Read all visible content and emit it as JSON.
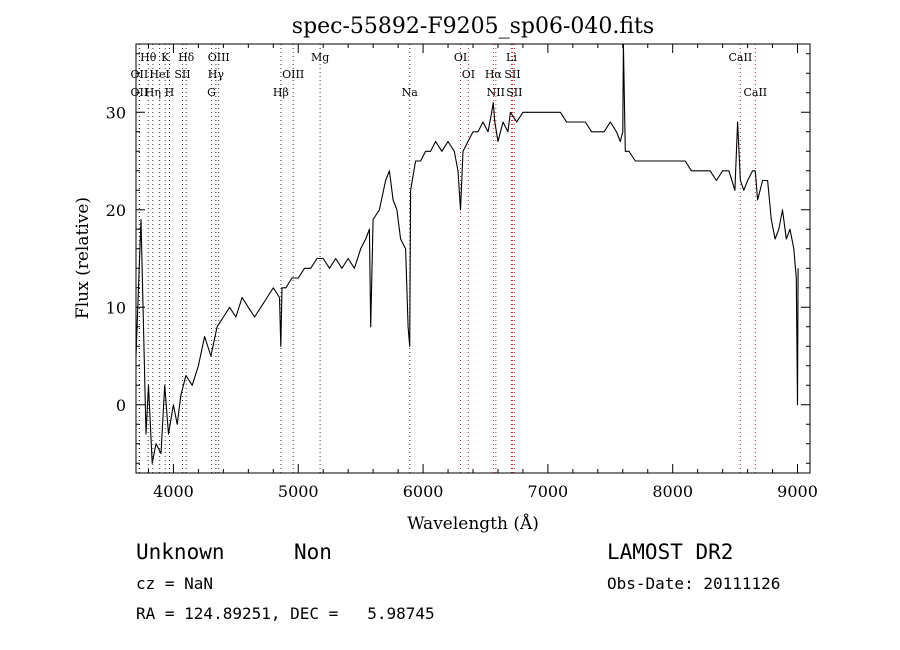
{
  "chart_data": {
    "type": "line",
    "title": "spec-55892-F9205_sp06-040.fits",
    "xlabel": "Wavelength (Å)",
    "ylabel": "Flux (relative)",
    "xlim": [
      3700,
      9100
    ],
    "ylim": [
      -7,
      37
    ],
    "x_ticks": [
      4000,
      5000,
      6000,
      7000,
      8000,
      9000
    ],
    "y_ticks": [
      0,
      10,
      20,
      30
    ],
    "grid": false,
    "series": [
      {
        "color": "#000000",
        "x": [
          3700,
          3740,
          3780,
          3800,
          3830,
          3860,
          3900,
          3930,
          3960,
          4000,
          4030,
          4060,
          4100,
          4150,
          4200,
          4250,
          4300,
          4350,
          4400,
          4450,
          4500,
          4550,
          4600,
          4650,
          4700,
          4750,
          4800,
          4850,
          4860,
          4870,
          4900,
          4950,
          5000,
          5050,
          5100,
          5150,
          5200,
          5250,
          5300,
          5350,
          5400,
          5450,
          5500,
          5540,
          5570,
          5580,
          5600,
          5650,
          5700,
          5730,
          5760,
          5790,
          5820,
          5860,
          5880,
          5893,
          5900,
          5940,
          5980,
          6020,
          6060,
          6100,
          6150,
          6200,
          6250,
          6280,
          6300,
          6320,
          6360,
          6400,
          6440,
          6480,
          6520,
          6550,
          6563,
          6575,
          6600,
          6640,
          6680,
          6700,
          6750,
          6800,
          6850,
          6900,
          6950,
          7000,
          7050,
          7100,
          7150,
          7200,
          7250,
          7300,
          7350,
          7400,
          7450,
          7500,
          7550,
          7580,
          7600,
          7605,
          7620,
          7650,
          7700,
          7750,
          7800,
          7850,
          7900,
          7950,
          8000,
          8050,
          8100,
          8150,
          8200,
          8250,
          8300,
          8350,
          8400,
          8450,
          8498,
          8520,
          8542,
          8570,
          8600,
          8640,
          8662,
          8680,
          8720,
          8760,
          8790,
          8820,
          8850,
          8880,
          8910,
          8940,
          8970,
          8990,
          9000,
          9005
        ],
        "y": [
          5,
          19,
          -3,
          2,
          -6,
          -4,
          -5,
          2,
          -3,
          0,
          -2,
          1,
          3,
          2,
          4,
          7,
          5,
          8,
          9,
          10,
          9,
          11,
          10,
          9,
          10,
          11,
          12,
          11,
          6,
          12,
          12,
          13,
          13,
          14,
          14,
          15,
          15,
          14,
          15,
          14,
          15,
          14,
          16,
          17,
          18,
          8,
          19,
          20,
          23,
          24,
          21,
          20,
          17,
          16,
          8,
          6,
          22,
          25,
          25,
          26,
          26,
          27,
          26,
          27,
          26,
          24,
          20,
          26,
          27,
          28,
          28,
          29,
          28,
          30,
          31,
          29,
          27,
          29,
          28,
          30,
          29,
          30,
          30,
          30,
          30,
          30,
          30,
          30,
          29,
          29,
          29,
          29,
          28,
          28,
          28,
          29,
          28,
          27,
          28,
          37,
          26,
          26,
          25,
          25,
          25,
          25,
          25,
          25,
          25,
          25,
          25,
          24,
          24,
          24,
          24,
          23,
          24,
          24,
          22,
          29,
          23,
          22,
          23,
          24,
          24,
          21,
          23,
          23,
          19,
          17,
          18,
          20,
          17,
          18,
          16,
          13,
          0,
          14
        ]
      }
    ],
    "line_markers": [
      {
        "label": "Hθ",
        "x": 3798,
        "row": 0,
        "color": "#333333"
      },
      {
        "label": "K",
        "x": 3934,
        "row": 0,
        "color": "#333333"
      },
      {
        "label": "Hδ",
        "x": 4102,
        "row": 0,
        "color": "#333333"
      },
      {
        "label": "OIII",
        "x": 4363,
        "row": 0,
        "color": "#333333"
      },
      {
        "label": "Mg",
        "x": 5175,
        "row": 0,
        "color": "#333333"
      },
      {
        "label": "OI",
        "x": 6300,
        "row": 0,
        "color": "#cc2222"
      },
      {
        "label": "Li",
        "x": 6708,
        "row": 0,
        "color": "#cc2222"
      },
      {
        "label": "CaII",
        "x": 8542,
        "row": 0,
        "color": "#cc2222"
      },
      {
        "label": "OII",
        "x": 3727,
        "row": 1,
        "color": "#333333"
      },
      {
        "label": "HeI",
        "x": 3889,
        "row": 1,
        "color": "#333333"
      },
      {
        "label": "SII",
        "x": 4072,
        "row": 1,
        "color": "#333333"
      },
      {
        "label": "Hγ",
        "x": 4340,
        "row": 1,
        "color": "#333333"
      },
      {
        "label": "OIII",
        "x": 4959,
        "row": 1,
        "color": "#333333"
      },
      {
        "label": "OI",
        "x": 6363,
        "row": 1,
        "color": "#cc2222"
      },
      {
        "label": "Hα",
        "x": 6563,
        "row": 1,
        "color": "#cc2222"
      },
      {
        "label": "SII",
        "x": 6716,
        "row": 1,
        "color": "#cc2222"
      },
      {
        "label": "OII",
        "x": 3727,
        "row": 2,
        "color": "#333333"
      },
      {
        "label": "Hη",
        "x": 3835,
        "row": 2,
        "color": "#333333"
      },
      {
        "label": "H",
        "x": 3968,
        "row": 2,
        "color": "#333333"
      },
      {
        "label": "G",
        "x": 4305,
        "row": 2,
        "color": "#333333"
      },
      {
        "label": "Hβ",
        "x": 4861,
        "row": 2,
        "color": "#333333"
      },
      {
        "label": "Na",
        "x": 5893,
        "row": 2,
        "color": "#333333"
      },
      {
        "label": "NII",
        "x": 6583,
        "row": 2,
        "color": "#cc2222"
      },
      {
        "label": "SII",
        "x": 6731,
        "row": 2,
        "color": "#cc2222"
      },
      {
        "label": "CaII",
        "x": 8662,
        "row": 2,
        "color": "#cc2222"
      }
    ]
  },
  "info": {
    "classification": "Unknown",
    "subclass": "Non",
    "survey": "LAMOST DR2",
    "redshift": "cz = NaN",
    "obs_date": "Obs-Date: 20111126",
    "coords": "RA = 124.89251, DEC =   5.98745"
  }
}
